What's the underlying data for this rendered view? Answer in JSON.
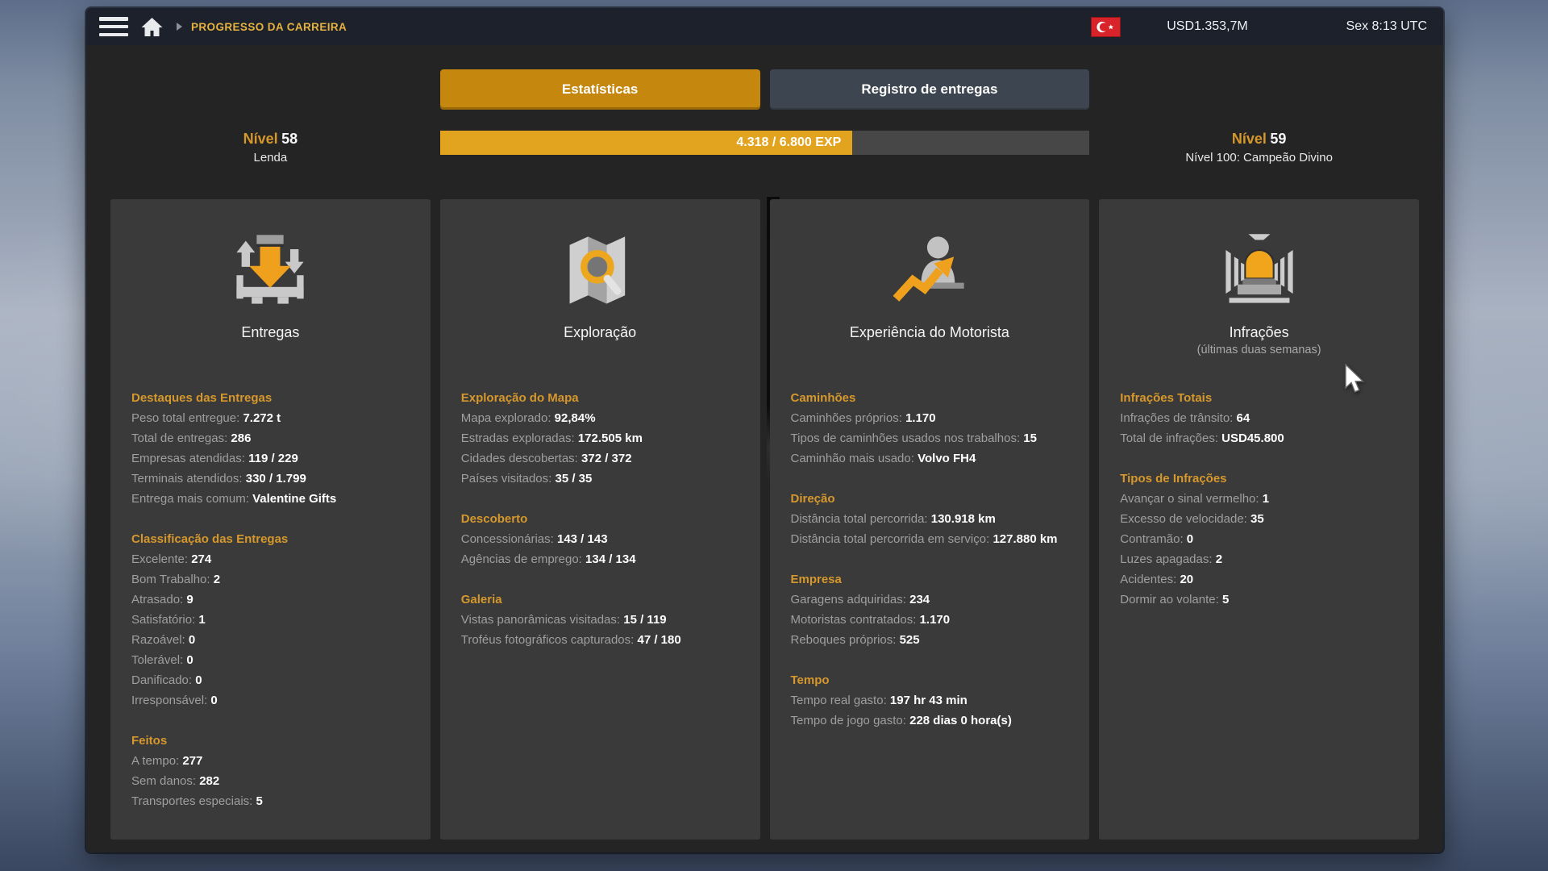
{
  "topbar": {
    "breadcrumb": "PROGRESSO DA CARREIRA",
    "money": "USD1.353,7M",
    "time": "Sex 8:13 UTC",
    "icons": [
      "hamburger-menu-icon",
      "home-icon",
      "breadcrumb-chevron-icon",
      "turkey-flag-icon"
    ]
  },
  "tabs": [
    {
      "label": "Estatísticas",
      "active": true
    },
    {
      "label": "Registro de entregas",
      "active": false
    }
  ],
  "level": {
    "current": {
      "label": "Nível",
      "value": "58",
      "sub": "Lenda"
    },
    "next": {
      "label": "Nível",
      "value": "59",
      "sub": "Nível 100: Campeão Divino"
    },
    "exp": {
      "text": "4.318 / 6.800 EXP",
      "current": 4318,
      "total": 6800,
      "percent": 63.5
    }
  },
  "cards": [
    {
      "title": "Entregas",
      "subtitle": "",
      "icon": "deliveries-icon",
      "sections": [
        {
          "header": "Destaques das Entregas",
          "rows": [
            {
              "label": "Peso total entregue:",
              "value": "7.272 t"
            },
            {
              "label": "Total de entregas:",
              "value": "286"
            },
            {
              "label": "Empresas atendidas:",
              "value": "119 / 229"
            },
            {
              "label": "Terminais atendidos:",
              "value": "330 / 1.799"
            },
            {
              "label": "Entrega mais comum:",
              "value": "Valentine Gifts"
            }
          ]
        },
        {
          "header": "Classificação das Entregas",
          "rows": [
            {
              "label": "Excelente:",
              "value": "274"
            },
            {
              "label": "Bom Trabalho:",
              "value": "2"
            },
            {
              "label": "Atrasado:",
              "value": "9"
            },
            {
              "label": "Satisfatório:",
              "value": "1"
            },
            {
              "label": "Razoável:",
              "value": "0"
            },
            {
              "label": "Tolerável:",
              "value": "0"
            },
            {
              "label": "Danificado:",
              "value": "0"
            },
            {
              "label": "Irresponsável:",
              "value": "0"
            }
          ]
        },
        {
          "header": "Feitos",
          "rows": [
            {
              "label": "A tempo:",
              "value": "277"
            },
            {
              "label": "Sem danos:",
              "value": "282"
            },
            {
              "label": "Transportes especiais:",
              "value": "5"
            }
          ]
        }
      ]
    },
    {
      "title": "Exploração",
      "subtitle": "",
      "icon": "exploration-icon",
      "sections": [
        {
          "header": "Exploração do Mapa",
          "rows": [
            {
              "label": "Mapa explorado:",
              "value": "92,84%"
            },
            {
              "label": "Estradas exploradas:",
              "value": "172.505 km"
            },
            {
              "label": "Cidades descobertas:",
              "value": "372 / 372"
            },
            {
              "label": "Países visitados:",
              "value": "35 / 35"
            }
          ]
        },
        {
          "header": "Descoberto",
          "rows": [
            {
              "label": "Concessionárias:",
              "value": "143 / 143"
            },
            {
              "label": "Agências de emprego:",
              "value": "134 / 134"
            }
          ]
        },
        {
          "header": "Galeria",
          "rows": [
            {
              "label": "Vistas panorâmicas visitadas:",
              "value": "15 / 119"
            },
            {
              "label": "Troféus fotográficos capturados:",
              "value": "47 / 180"
            }
          ]
        }
      ]
    },
    {
      "title": "Experiência do Motorista",
      "subtitle": "",
      "icon": "driver-experience-icon",
      "sections": [
        {
          "header": "Caminhões",
          "rows": [
            {
              "label": "Caminhões próprios:",
              "value": "1.170"
            },
            {
              "label": "Tipos de caminhões usados nos trabalhos:",
              "value": "15"
            },
            {
              "label": "Caminhão mais usado:",
              "value": "Volvo FH4"
            }
          ]
        },
        {
          "header": "Direção",
          "rows": [
            {
              "label": "Distância total percorrida:",
              "value": "130.918 km"
            },
            {
              "label": "Distância total percorrida em serviço:",
              "value": "127.880 km"
            }
          ]
        },
        {
          "header": "Empresa",
          "rows": [
            {
              "label": "Garagens adquiridas:",
              "value": "234"
            },
            {
              "label": "Motoristas contratados:",
              "value": "1.170"
            },
            {
              "label": "Reboques próprios:",
              "value": "525"
            }
          ]
        },
        {
          "header": "Tempo",
          "rows": [
            {
              "label": "Tempo real gasto:",
              "value": "197 hr 43 min"
            },
            {
              "label": "Tempo de jogo gasto:",
              "value": "228 dias 0 hora(s)"
            }
          ]
        }
      ]
    },
    {
      "title": "Infrações",
      "subtitle": "(últimas duas semanas)",
      "icon": "infractions-icon",
      "sections": [
        {
          "header": "Infrações Totais",
          "rows": [
            {
              "label": "Infrações de trânsito:",
              "value": "64"
            },
            {
              "label": "Total de infrações:",
              "value": "USD45.800"
            }
          ]
        },
        {
          "header": "Tipos de Infrações",
          "rows": [
            {
              "label": "Avançar o sinal vermelho:",
              "value": "1"
            },
            {
              "label": "Excesso de velocidade:",
              "value": "35"
            },
            {
              "label": "Contramão:",
              "value": "0"
            },
            {
              "label": "Luzes apagadas:",
              "value": "2"
            },
            {
              "label": "Acidentes:",
              "value": "20"
            },
            {
              "label": "Dormir ao volante:",
              "value": "5"
            }
          ]
        }
      ]
    }
  ],
  "colors": {
    "accent": "#d6982c",
    "accent_bright": "#e7b23e",
    "tab_active": "#c5870e",
    "exp_fill": "#e2a41f",
    "flag_red": "#d8232a",
    "card_bg": "#3a3a3a",
    "topbar_bg": "#1c212b"
  }
}
